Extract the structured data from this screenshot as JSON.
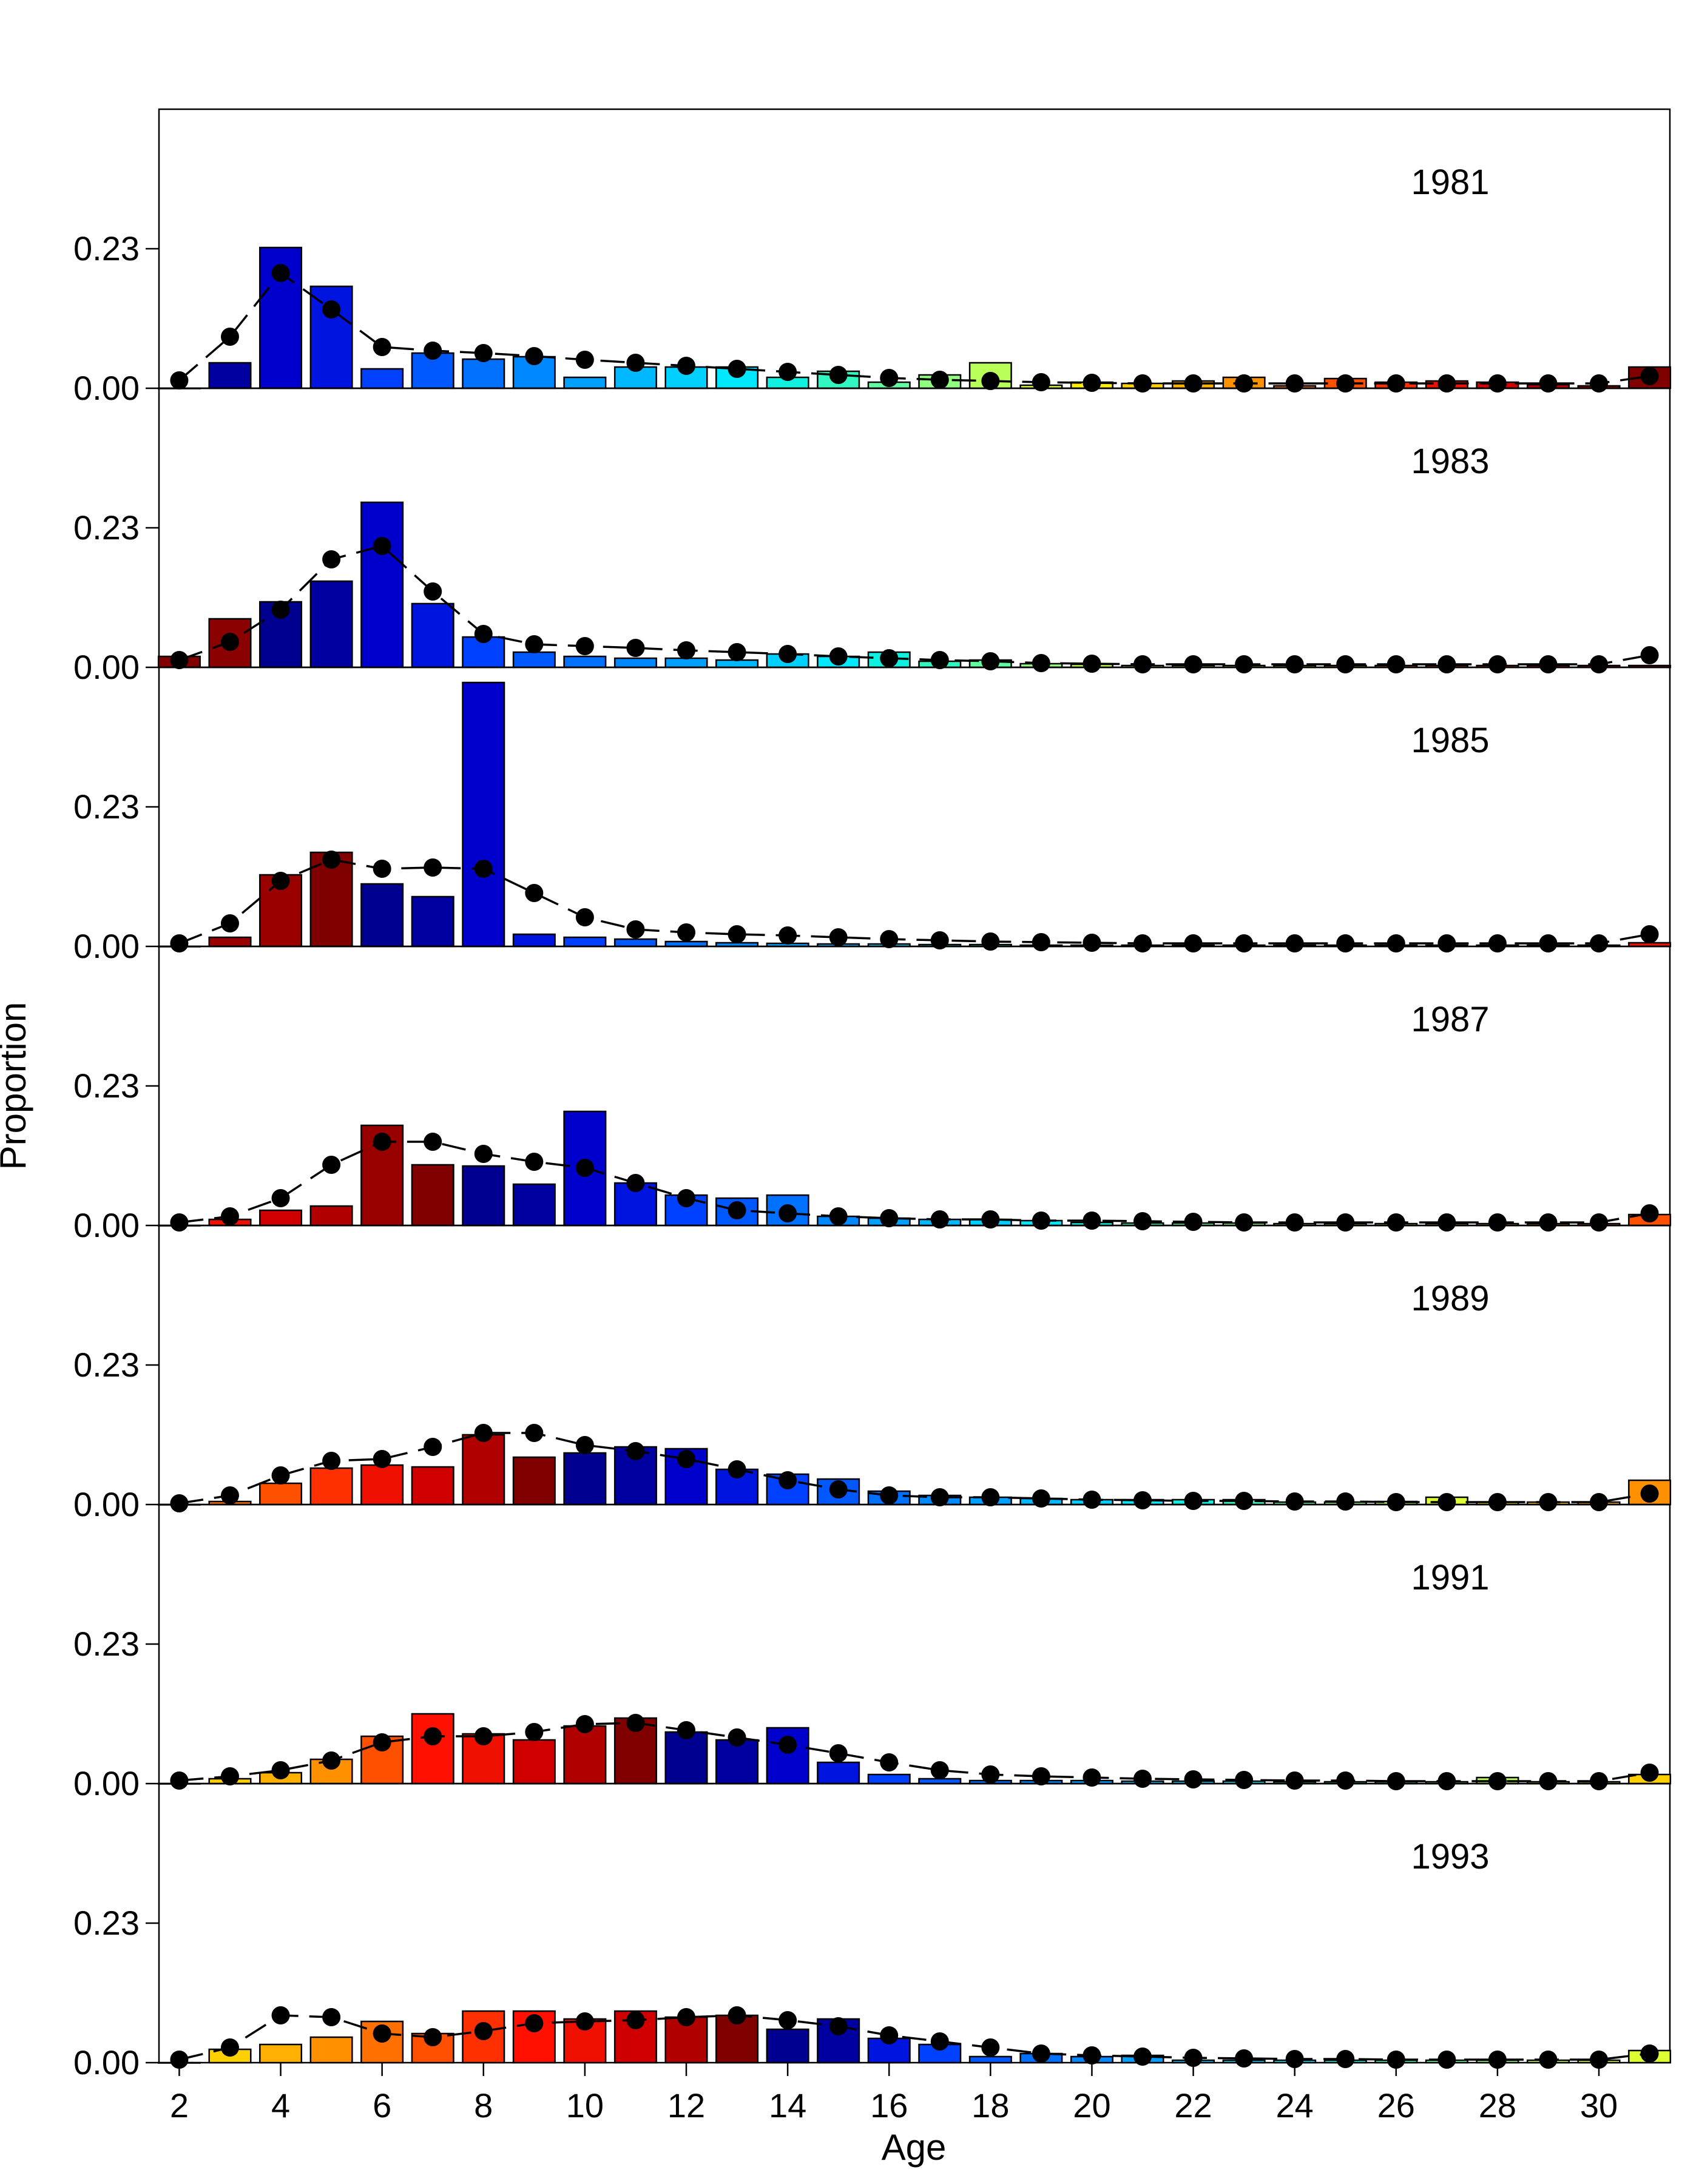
{
  "chart_data": {
    "type": "bar",
    "xlabel": "Age",
    "ylabel": "Proportion",
    "y_ticks": [
      "0.00",
      "0.23"
    ],
    "y_tick_values": [
      0,
      0.23
    ],
    "ylim": [
      0,
      0.46
    ],
    "x_ticks": [
      2,
      4,
      6,
      8,
      10,
      12,
      14,
      16,
      18,
      20,
      22,
      24,
      26,
      28,
      30
    ],
    "xlim": [
      1.6,
      31.4
    ],
    "ages": [
      2,
      3,
      4,
      5,
      6,
      7,
      8,
      9,
      10,
      11,
      12,
      13,
      14,
      15,
      16,
      17,
      18,
      19,
      20,
      21,
      22,
      23,
      24,
      25,
      26,
      27,
      28,
      29,
      30,
      31
    ],
    "panels": [
      {
        "label": "1981",
        "observed": [
          0.0,
          0.042,
          0.232,
          0.168,
          0.032,
          0.058,
          0.048,
          0.052,
          0.018,
          0.035,
          0.035,
          0.035,
          0.018,
          0.028,
          0.01,
          0.022,
          0.042,
          0.005,
          0.01,
          0.008,
          0.012,
          0.018,
          0.004,
          0.016,
          0.01,
          0.012,
          0.01,
          0.006,
          0.004,
          0.035
        ],
        "expected": [
          0.013,
          0.085,
          0.19,
          0.13,
          0.068,
          0.062,
          0.058,
          0.053,
          0.047,
          0.042,
          0.037,
          0.032,
          0.027,
          0.022,
          0.017,
          0.014,
          0.012,
          0.01,
          0.009,
          0.008,
          0.008,
          0.008,
          0.008,
          0.008,
          0.008,
          0.008,
          0.008,
          0.008,
          0.008,
          0.02
        ],
        "colors": [
          "#8B0000",
          "#0000A0",
          "#0000CD",
          "#0014E0",
          "#0040FF",
          "#0058FF",
          "#0070FF",
          "#0088FF",
          "#00A0FF",
          "#00B8FF",
          "#00D0FF",
          "#00E8FF",
          "#10F0E0",
          "#30F8C0",
          "#60FFA0",
          "#90FF80",
          "#B8FF58",
          "#E0FF30",
          "#FFF000",
          "#FFD000",
          "#FFB000",
          "#FF9000",
          "#FF7000",
          "#FF5000",
          "#FF3000",
          "#F01000",
          "#D00000",
          "#B00000",
          "#980000",
          "#800000"
        ]
      },
      {
        "label": "1983",
        "observed": [
          0.018,
          0.08,
          0.108,
          0.142,
          0.272,
          0.105,
          0.05,
          0.025,
          0.018,
          0.015,
          0.015,
          0.012,
          0.022,
          0.018,
          0.025,
          0.01,
          0.012,
          0.006,
          0.005,
          0.003,
          0.003,
          0.003,
          0.003,
          0.003,
          0.003,
          0.003,
          0.003,
          0.003,
          0.003,
          0.003
        ],
        "expected": [
          0.012,
          0.042,
          0.095,
          0.178,
          0.2,
          0.125,
          0.055,
          0.038,
          0.035,
          0.032,
          0.028,
          0.025,
          0.022,
          0.018,
          0.015,
          0.012,
          0.01,
          0.007,
          0.006,
          0.005,
          0.005,
          0.005,
          0.005,
          0.005,
          0.005,
          0.005,
          0.005,
          0.005,
          0.005,
          0.02
        ],
        "colors": [
          "#800000",
          "#8B0000",
          "#000090",
          "#0000A0",
          "#0000CD",
          "#0014E0",
          "#0040FF",
          "#0058FF",
          "#0070FF",
          "#0088FF",
          "#00A0FF",
          "#00B8FF",
          "#00D0FF",
          "#00E8FF",
          "#10F0E0",
          "#30F8C0",
          "#60FFA0",
          "#90FF80",
          "#B8FF58",
          "#E0FF30",
          "#FFF000",
          "#FFD000",
          "#FFB000",
          "#FF9000",
          "#FF7000",
          "#FF5000",
          "#FF3000",
          "#F01000",
          "#D00000",
          "#B00000"
        ]
      },
      {
        "label": "1985",
        "observed": [
          0.0,
          0.015,
          0.118,
          0.155,
          0.103,
          0.082,
          0.435,
          0.02,
          0.015,
          0.012,
          0.008,
          0.006,
          0.005,
          0.004,
          0.004,
          0.003,
          0.003,
          0.002,
          0.002,
          0.002,
          0.002,
          0.002,
          0.002,
          0.002,
          0.002,
          0.002,
          0.002,
          0.002,
          0.002,
          0.006
        ],
        "expected": [
          0.005,
          0.038,
          0.108,
          0.143,
          0.128,
          0.13,
          0.128,
          0.088,
          0.048,
          0.028,
          0.023,
          0.02,
          0.018,
          0.015,
          0.012,
          0.01,
          0.008,
          0.007,
          0.006,
          0.005,
          0.005,
          0.005,
          0.005,
          0.005,
          0.005,
          0.005,
          0.005,
          0.005,
          0.005,
          0.02
        ],
        "colors": [
          "#B00000",
          "#980000",
          "#9A0000",
          "#800000",
          "#000090",
          "#0000A0",
          "#0000CD",
          "#0014E0",
          "#0040FF",
          "#0058FF",
          "#0070FF",
          "#0088FF",
          "#00A0FF",
          "#00B8FF",
          "#00D0FF",
          "#00E8FF",
          "#10F0E0",
          "#30F8C0",
          "#60FFA0",
          "#90FF80",
          "#B8FF58",
          "#E0FF30",
          "#FFF000",
          "#FFD000",
          "#FFB000",
          "#FF9000",
          "#FF7000",
          "#FF5000",
          "#FF3000",
          "#F01000"
        ]
      },
      {
        "label": "1987",
        "observed": [
          0.0,
          0.01,
          0.025,
          0.032,
          0.165,
          0.1,
          0.098,
          0.068,
          0.188,
          0.07,
          0.05,
          0.045,
          0.05,
          0.015,
          0.012,
          0.01,
          0.01,
          0.008,
          0.005,
          0.004,
          0.004,
          0.004,
          0.003,
          0.003,
          0.003,
          0.003,
          0.003,
          0.003,
          0.003,
          0.018
        ],
        "expected": [
          0.005,
          0.015,
          0.045,
          0.1,
          0.138,
          0.138,
          0.118,
          0.105,
          0.095,
          0.07,
          0.045,
          0.025,
          0.02,
          0.015,
          0.012,
          0.01,
          0.01,
          0.008,
          0.008,
          0.007,
          0.006,
          0.005,
          0.005,
          0.005,
          0.005,
          0.005,
          0.005,
          0.005,
          0.005,
          0.02
        ],
        "colors": [
          "#FF3000",
          "#F01000",
          "#D00000",
          "#B00000",
          "#980000",
          "#800000",
          "#000090",
          "#0000A0",
          "#0000CD",
          "#0014E0",
          "#0040FF",
          "#0058FF",
          "#0070FF",
          "#0088FF",
          "#00A0FF",
          "#00B8FF",
          "#00D0FF",
          "#00E8FF",
          "#10F0E0",
          "#30F8C0",
          "#60FFA0",
          "#90FF80",
          "#B8FF58",
          "#E0FF30",
          "#FFF000",
          "#FFD000",
          "#FFB000",
          "#FF9000",
          "#FF7000",
          "#FF5000"
        ]
      },
      {
        "label": "1989",
        "observed": [
          0.0,
          0.005,
          0.035,
          0.06,
          0.065,
          0.062,
          0.115,
          0.078,
          0.085,
          0.095,
          0.092,
          0.058,
          0.05,
          0.042,
          0.022,
          0.015,
          0.012,
          0.01,
          0.008,
          0.008,
          0.008,
          0.008,
          0.004,
          0.004,
          0.005,
          0.012,
          0.004,
          0.004,
          0.004,
          0.04
        ],
        "expected": [
          0.002,
          0.015,
          0.048,
          0.072,
          0.075,
          0.095,
          0.118,
          0.118,
          0.098,
          0.088,
          0.075,
          0.058,
          0.04,
          0.025,
          0.015,
          0.012,
          0.012,
          0.01,
          0.008,
          0.007,
          0.006,
          0.006,
          0.005,
          0.005,
          0.004,
          0.004,
          0.004,
          0.004,
          0.004,
          0.018
        ],
        "colors": [
          "#FF9000",
          "#FF7000",
          "#FF5000",
          "#FF3000",
          "#F01000",
          "#D00000",
          "#B00000",
          "#800000",
          "#000090",
          "#0000A0",
          "#0000CD",
          "#0014E0",
          "#0040FF",
          "#0058FF",
          "#0070FF",
          "#0088FF",
          "#00A0FF",
          "#00B8FF",
          "#00D0FF",
          "#00E8FF",
          "#10F0E0",
          "#30F8C0",
          "#60FFA0",
          "#90FF80",
          "#B8FF58",
          "#E0FF30",
          "#FFF000",
          "#FFD000",
          "#FFB000",
          "#FF9000"
        ]
      },
      {
        "label": "1991",
        "observed": [
          0.0,
          0.008,
          0.018,
          0.04,
          0.078,
          0.115,
          0.082,
          0.072,
          0.095,
          0.108,
          0.085,
          0.072,
          0.092,
          0.035,
          0.015,
          0.008,
          0.005,
          0.005,
          0.005,
          0.004,
          0.004,
          0.004,
          0.003,
          0.003,
          0.003,
          0.003,
          0.01,
          0.003,
          0.003,
          0.015
        ],
        "expected": [
          0.005,
          0.012,
          0.022,
          0.038,
          0.068,
          0.078,
          0.078,
          0.085,
          0.098,
          0.1,
          0.088,
          0.076,
          0.064,
          0.05,
          0.035,
          0.022,
          0.015,
          0.012,
          0.01,
          0.008,
          0.007,
          0.006,
          0.005,
          0.005,
          0.004,
          0.004,
          0.004,
          0.004,
          0.004,
          0.018
        ],
        "colors": [
          "#FFF000",
          "#FFD000",
          "#FFB000",
          "#FF9000",
          "#FF5000",
          "#FF1000",
          "#F01000",
          "#D00000",
          "#B00000",
          "#800000",
          "#000090",
          "#0000A0",
          "#0000CD",
          "#0014E0",
          "#0040FF",
          "#0058FF",
          "#0070FF",
          "#0088FF",
          "#00A0FF",
          "#00B8FF",
          "#00D0FF",
          "#00E8FF",
          "#10F0E0",
          "#30F8C0",
          "#60FFA0",
          "#90FF80",
          "#B8FF58",
          "#E0FF30",
          "#FFF000",
          "#FFD000"
        ]
      },
      {
        "label": "1993",
        "observed": [
          0.0,
          0.022,
          0.03,
          0.042,
          0.068,
          0.048,
          0.085,
          0.085,
          0.072,
          0.085,
          0.075,
          0.078,
          0.055,
          0.072,
          0.04,
          0.03,
          0.01,
          0.015,
          0.01,
          0.012,
          0.004,
          0.004,
          0.004,
          0.004,
          0.004,
          0.004,
          0.004,
          0.004,
          0.004,
          0.02
        ],
        "expected": [
          0.005,
          0.025,
          0.078,
          0.075,
          0.048,
          0.042,
          0.052,
          0.065,
          0.068,
          0.07,
          0.075,
          0.078,
          0.07,
          0.06,
          0.045,
          0.035,
          0.025,
          0.015,
          0.012,
          0.01,
          0.008,
          0.007,
          0.006,
          0.006,
          0.005,
          0.005,
          0.005,
          0.005,
          0.005,
          0.015
        ],
        "colors": [
          "#FFD000",
          "#FFD000",
          "#FFB000",
          "#FF9000",
          "#FF7000",
          "#FF5000",
          "#FF3000",
          "#FF1000",
          "#F01000",
          "#D00000",
          "#B00000",
          "#800000",
          "#000090",
          "#0000A0",
          "#0014E0",
          "#0040FF",
          "#0058FF",
          "#0070FF",
          "#0088FF",
          "#00A0FF",
          "#00B8FF",
          "#00D0FF",
          "#00E8FF",
          "#10F0E0",
          "#30F8C0",
          "#60FFA0",
          "#90FF80",
          "#B8FF58",
          "#E0FF30",
          "#E0FF30"
        ]
      }
    ]
  }
}
